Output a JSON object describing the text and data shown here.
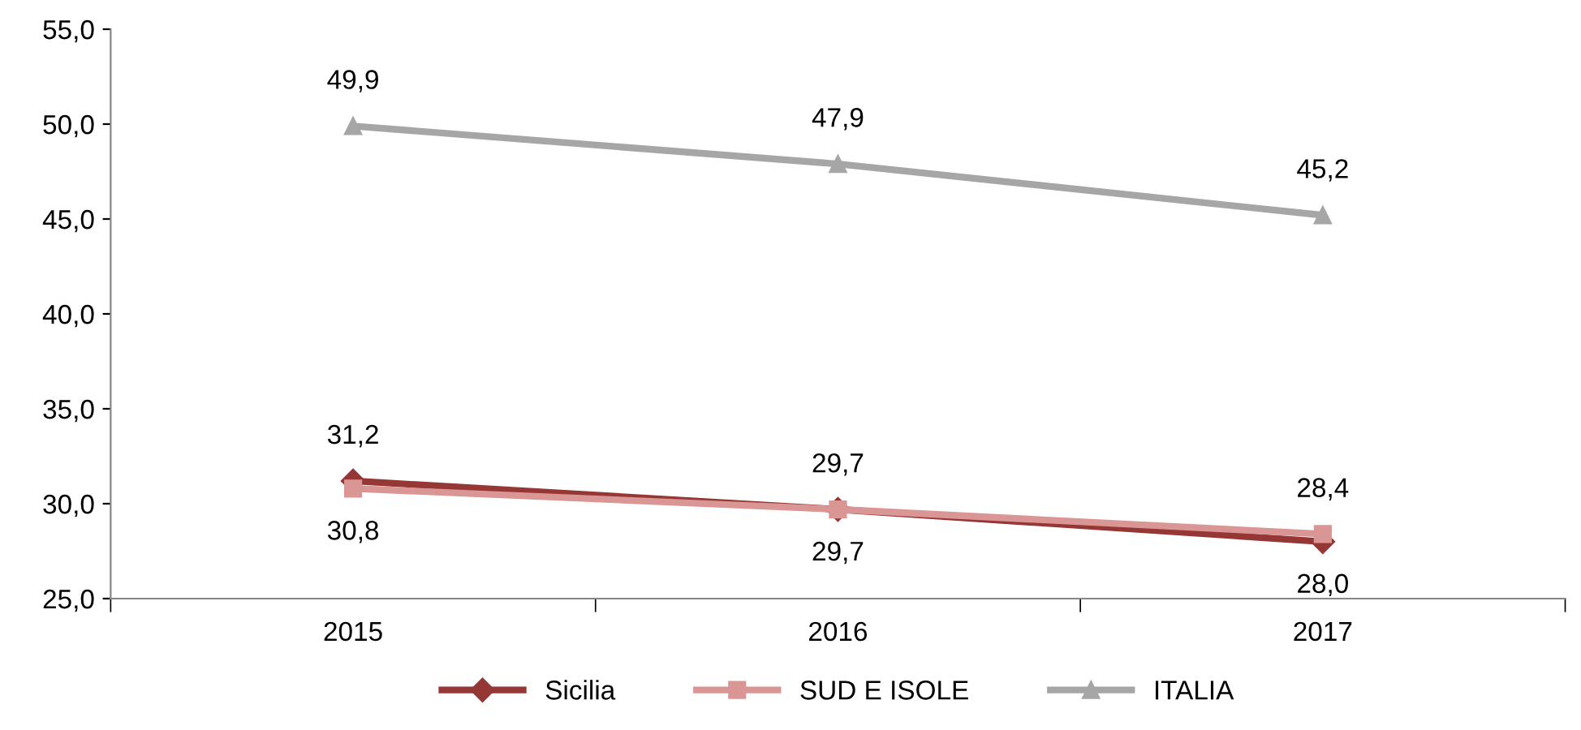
{
  "chart_data": {
    "type": "line",
    "categories": [
      "2015",
      "2016",
      "2017"
    ],
    "series": [
      {
        "name": "Sicilia",
        "color": "#953735",
        "marker": "diamond",
        "values": [
          31.2,
          29.7,
          28.0
        ],
        "value_labels": [
          "31,2",
          "29,7",
          "28,0"
        ]
      },
      {
        "name": "SUD E ISOLE",
        "color": "#d99694",
        "marker": "square",
        "values": [
          30.8,
          29.7,
          28.4
        ],
        "value_labels": [
          "30,8",
          "29,7",
          "28,4"
        ]
      },
      {
        "name": "ITALIA",
        "color": "#a6a6a6",
        "marker": "triangle",
        "values": [
          49.9,
          47.9,
          45.2
        ],
        "value_labels": [
          "49,9",
          "47,9",
          "45,2"
        ]
      }
    ],
    "ylim": [
      25,
      55
    ],
    "yticks": [
      {
        "value": 25,
        "label": "25,0"
      },
      {
        "value": 30,
        "label": "30,0"
      },
      {
        "value": 35,
        "label": "35,0"
      },
      {
        "value": 40,
        "label": "40,0"
      },
      {
        "value": 45,
        "label": "45,0"
      },
      {
        "value": 50,
        "label": "50,0"
      },
      {
        "value": 55,
        "label": "55,0"
      }
    ],
    "grid": false,
    "legend": "bottom",
    "line_style": "solid"
  }
}
